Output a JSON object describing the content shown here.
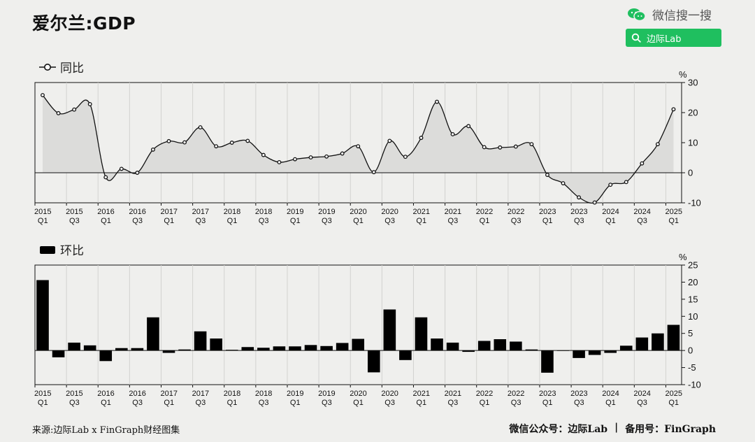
{
  "header": {
    "title": "爱尔兰:GDP",
    "wechat_label": "微信搜一搜",
    "search_label": "边际Lab"
  },
  "footer": {
    "source": "来源:边际Lab x FinGraph财经图集",
    "account": "微信公众号：边际Lab",
    "separator": "|",
    "backup": "备用号：FinGraph"
  },
  "colors": {
    "background": "#efefed",
    "line": "#111111",
    "area_fill": "#dcdcda",
    "bar": "#000000",
    "wechat_green": "#1fbf5f",
    "grid": "#d2d2d0"
  },
  "chart_data": [
    {
      "type": "area",
      "legend": "同比",
      "unit": "%",
      "ylim": [
        -10,
        30
      ],
      "yticks": [
        -10,
        0,
        10,
        20,
        30
      ],
      "grid": true,
      "categories": [
        "2015Q1",
        "2015Q2",
        "2015Q3",
        "2015Q4",
        "2016Q1",
        "2016Q2",
        "2016Q3",
        "2016Q4",
        "2017Q1",
        "2017Q2",
        "2017Q3",
        "2017Q4",
        "2018Q1",
        "2018Q2",
        "2018Q3",
        "2018Q4",
        "2019Q1",
        "2019Q2",
        "2019Q3",
        "2019Q4",
        "2020Q1",
        "2020Q2",
        "2020Q3",
        "2020Q4",
        "2021Q1",
        "2021Q2",
        "2021Q3",
        "2021Q4",
        "2022Q1",
        "2022Q2",
        "2022Q3",
        "2022Q4",
        "2023Q1",
        "2023Q2",
        "2023Q3",
        "2023Q4",
        "2024Q1",
        "2024Q2",
        "2024Q3",
        "2024Q4",
        "2025Q1"
      ],
      "x_tick_labels": [
        {
          "year": "2015",
          "q": "Q1"
        },
        {
          "year": "2015",
          "q": "Q3"
        },
        {
          "year": "2016",
          "q": "Q1"
        },
        {
          "year": "2016",
          "q": "Q3"
        },
        {
          "year": "2017",
          "q": "Q1"
        },
        {
          "year": "2017",
          "q": "Q3"
        },
        {
          "year": "2018",
          "q": "Q1"
        },
        {
          "year": "2018",
          "q": "Q3"
        },
        {
          "year": "2019",
          "q": "Q1"
        },
        {
          "year": "2019",
          "q": "Q3"
        },
        {
          "year": "2020",
          "q": "Q1"
        },
        {
          "year": "2020",
          "q": "Q3"
        },
        {
          "year": "2021",
          "q": "Q1"
        },
        {
          "year": "2021",
          "q": "Q3"
        },
        {
          "year": "2022",
          "q": "Q1"
        },
        {
          "year": "2022",
          "q": "Q3"
        },
        {
          "year": "2023",
          "q": "Q1"
        },
        {
          "year": "2023",
          "q": "Q3"
        },
        {
          "year": "2024",
          "q": "Q1"
        },
        {
          "year": "2024",
          "q": "Q3"
        },
        {
          "year": "2025",
          "q": "Q1"
        }
      ],
      "values": [
        25.8,
        19.8,
        21.0,
        22.8,
        -1.5,
        1.3,
        0.0,
        7.7,
        10.5,
        10.1,
        15.1,
        8.8,
        10.0,
        10.6,
        5.9,
        3.5,
        4.5,
        5.1,
        5.4,
        6.4,
        8.8,
        0.2,
        10.6,
        5.3,
        11.6,
        23.6,
        12.8,
        15.5,
        8.5,
        8.4,
        8.7,
        9.5,
        -0.7,
        -3.5,
        -8.2,
        -9.9,
        -4.0,
        -3.1,
        3.1,
        9.5,
        21.1
      ]
    },
    {
      "type": "bar",
      "legend": "环比",
      "unit": "%",
      "ylim": [
        -10,
        25
      ],
      "yticks": [
        -10,
        -5,
        0,
        5,
        10,
        15,
        20,
        25
      ],
      "grid": true,
      "categories": [
        "2015Q1",
        "2015Q2",
        "2015Q3",
        "2015Q4",
        "2016Q1",
        "2016Q2",
        "2016Q3",
        "2016Q4",
        "2017Q1",
        "2017Q2",
        "2017Q3",
        "2017Q4",
        "2018Q1",
        "2018Q2",
        "2018Q3",
        "2018Q4",
        "2019Q1",
        "2019Q2",
        "2019Q3",
        "2019Q4",
        "2020Q1",
        "2020Q2",
        "2020Q3",
        "2020Q4",
        "2021Q1",
        "2021Q2",
        "2021Q3",
        "2021Q4",
        "2022Q1",
        "2022Q2",
        "2022Q3",
        "2022Q4",
        "2023Q1",
        "2023Q2",
        "2023Q3",
        "2023Q4",
        "2024Q1",
        "2024Q2",
        "2024Q3",
        "2024Q4",
        "2025Q1"
      ],
      "values": [
        20.6,
        -2.0,
        2.3,
        1.5,
        -3.1,
        0.7,
        0.7,
        9.7,
        -0.7,
        0.3,
        5.6,
        3.5,
        0.2,
        1.0,
        0.8,
        1.2,
        1.2,
        1.6,
        1.3,
        2.2,
        3.4,
        -6.4,
        12.0,
        -2.8,
        9.7,
        3.5,
        2.3,
        -0.4,
        2.8,
        3.3,
        2.6,
        0.3,
        -6.5,
        0.0,
        -2.2,
        -1.3,
        -0.7,
        1.4,
        3.8,
        5.0,
        7.5
      ]
    }
  ]
}
